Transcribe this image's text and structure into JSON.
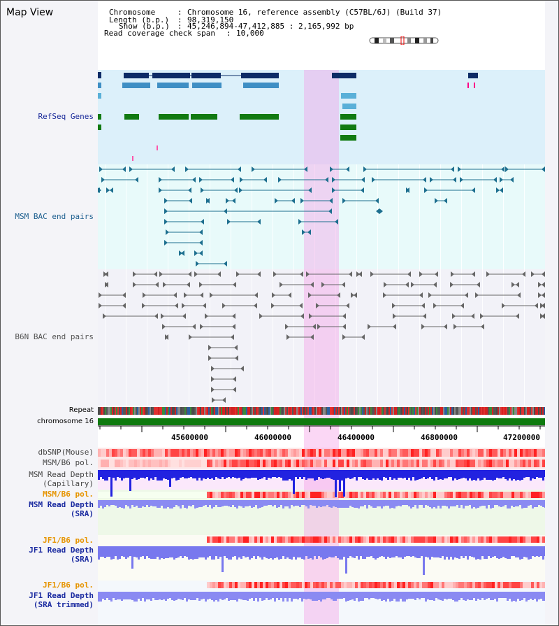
{
  "app": {
    "title": "Map View"
  },
  "header": {
    "chromosome_label": "Chromosome",
    "chromosome_value": "Chromosome 16, reference assembly (C57BL/6J) (Build 37)",
    "length_label": "Length (b.p.)",
    "length_value": "98,319,150",
    "show_label": "Show (b.p.)",
    "show_value": "45,246,894-47,412,885 : 2,165,992 bp",
    "span_label": "Read coverage check span",
    "span_value": "10,000"
  },
  "tracks": {
    "refseq": "RefSeq Genes",
    "msm_bac": "MSM BAC end pairs",
    "b6n_bac": "B6N BAC end pairs",
    "repeat": "Repeat",
    "chromosome": "chromosome 16",
    "dbsnp": "dbSNP(Mouse)",
    "msm_pol": "MSM/B6 pol.",
    "msm_depth_cap_1": "MSM Read Depth",
    "msm_depth_cap_2": "(Capillary)",
    "msm_pol_sra": "MSM/B6 pol.",
    "msm_depth_sra_1": "MSM Read Depth",
    "msm_depth_sra_2": "(SRA)",
    "jf1_pol": "JF1/B6 pol.",
    "jf1_depth_1": "JF1 Read Depth",
    "jf1_depth_2": "(SRA)",
    "jf1_pol_trim": "JF1/B6 pol.",
    "jf1_trim_1": "JF1 Read Depth",
    "jf1_trim_2": "(SRA trimmed)"
  },
  "ruler": {
    "ticks": [
      "45600000",
      "46000000",
      "46400000",
      "46800000",
      "47200000"
    ]
  },
  "colors": {
    "refseq_dark": "#0d2b66",
    "refseq_mid": "#3f8fc4",
    "refseq_light": "#5ab0d8",
    "refseq_green": "#117a11",
    "msm_bac": "#1d6f8f",
    "b6n_bac": "#666666",
    "highlight": "#f7b6ec",
    "chrom_green": "#0e7a0e",
    "depth_blue": "#2020e8",
    "depth_light": "#8a8af0"
  }
}
